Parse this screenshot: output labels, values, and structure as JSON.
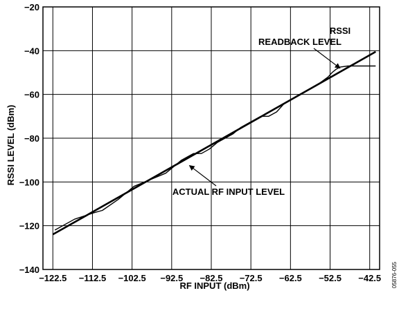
{
  "chart_data": {
    "type": "line",
    "xlabel": "RF INPUT (dBm)",
    "ylabel": "RSSI LEVEL (dBm)",
    "xlim": [
      -125,
      -40
    ],
    "ylim": [
      -140,
      -20
    ],
    "xticks": [
      -122.5,
      -112.5,
      -102.5,
      -92.5,
      -82.5,
      -72.5,
      -62.5,
      -52.5,
      -42.5
    ],
    "yticks": [
      -20,
      -40,
      -60,
      -80,
      -100,
      -120,
      -140
    ],
    "xtick_labels": [
      "−122.5",
      "−112.5",
      "−102.5",
      "−92.5",
      "−82.5",
      "−72.5",
      "−62.5",
      "−52.5",
      "−42.5"
    ],
    "ytick_labels": [
      "−20",
      "−40",
      "−60",
      "−80",
      "−100",
      "−120",
      "−140"
    ],
    "grid": true,
    "series": [
      {
        "name": "ACTUAL RF INPUT LEVEL",
        "x": [
          -122.5,
          -41
        ],
        "y": [
          -124,
          -40.5
        ]
      },
      {
        "name": "RSSI READBACK LEVEL",
        "x": [
          -122,
          -117,
          -112,
          -110,
          -106,
          -102,
          -98,
          -94,
          -92,
          -90,
          -88,
          -87,
          -86,
          -85,
          -83,
          -81,
          -79,
          -77,
          -75,
          -73,
          -71,
          -70,
          -69,
          -68,
          -66,
          -64,
          -61,
          -58,
          -56,
          -53,
          -52,
          -51,
          -50,
          -48,
          -46,
          -44,
          -41
        ],
        "y": [
          -122,
          -117,
          -114,
          -113,
          -108,
          -102,
          -99,
          -96,
          -93,
          -90,
          -88,
          -87,
          -87,
          -87,
          -85,
          -82,
          -80,
          -78,
          -75,
          -73,
          -71,
          -70,
          -70,
          -70,
          -68,
          -64,
          -61,
          -58,
          -56,
          -52,
          -50,
          -48.5,
          -47.5,
          -47,
          -47,
          -47,
          -47
        ]
      }
    ],
    "annotations": [
      {
        "text": "RSSI",
        "arrow_to": [
          -50,
          -48
        ]
      },
      {
        "text": "READBACK LEVEL"
      },
      {
        "text": "ACTUAL RF INPUT LEVEL",
        "arrow_to": [
          -88,
          -92.5
        ]
      }
    ],
    "figure_id": "05876-055"
  }
}
